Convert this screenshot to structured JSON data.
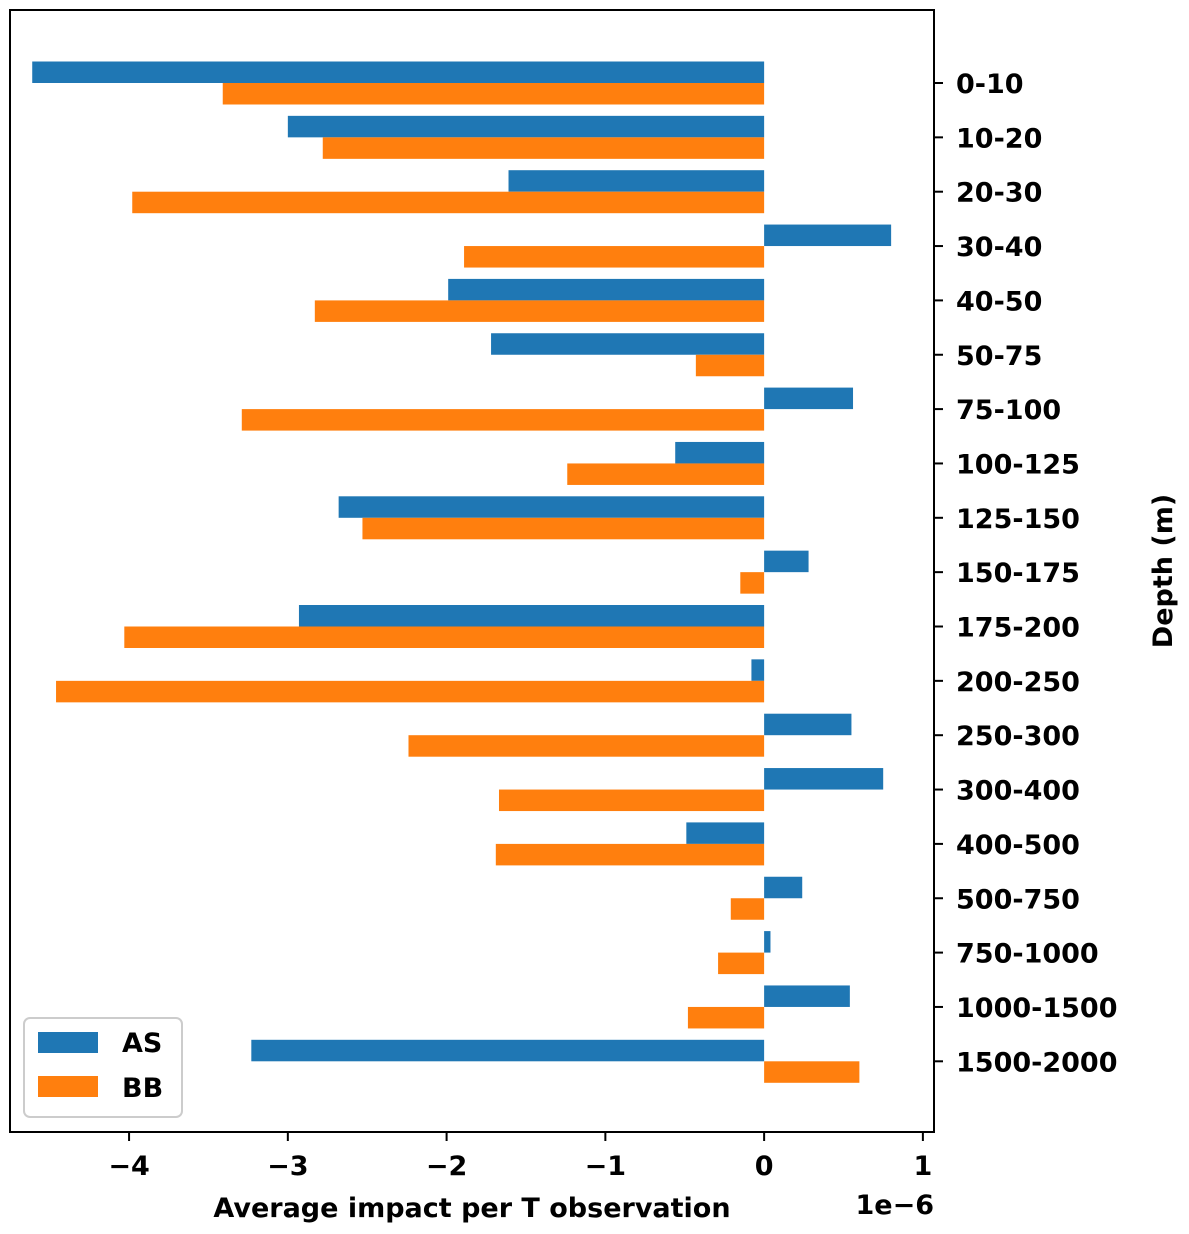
{
  "chart_data": {
    "type": "bar",
    "orientation": "horizontal",
    "title": "",
    "xlabel": "Average impact per T observation",
    "ylabel": "Depth (m)",
    "ylabel_position": "right",
    "x_scale_label": "1e−6",
    "xlim": [
      -4.75,
      1.07
    ],
    "xticks": [
      -4,
      -3,
      -2,
      -1,
      0,
      1
    ],
    "xtick_labels": [
      "−4",
      "−3",
      "−2",
      "−1",
      "0",
      "1"
    ],
    "categories": [
      "0-10",
      "10-20",
      "20-30",
      "30-40",
      "40-50",
      "50-75",
      "75-100",
      "100-125",
      "125-150",
      "150-175",
      "175-200",
      "200-250",
      "250-300",
      "300-400",
      "400-500",
      "500-750",
      "750-1000",
      "1000-1500",
      "1500-2000"
    ],
    "series": [
      {
        "name": "AS",
        "color": "#1f77b4",
        "values": [
          -4.61,
          -3.0,
          -1.61,
          0.8,
          -1.99,
          -1.72,
          0.56,
          -0.56,
          -2.68,
          0.28,
          -2.93,
          -0.08,
          0.55,
          0.75,
          -0.49,
          0.24,
          0.04,
          0.54,
          -3.23
        ]
      },
      {
        "name": "BB",
        "color": "#ff7f0e",
        "values": [
          -3.41,
          -2.78,
          -3.98,
          -1.89,
          -2.83,
          -0.43,
          -3.29,
          -1.24,
          -2.53,
          -0.15,
          -4.03,
          -4.46,
          -2.24,
          -1.67,
          -1.69,
          -0.21,
          -0.29,
          -0.48,
          0.6
        ]
      }
    ],
    "legend": {
      "position": "lower-left",
      "entries": [
        "AS",
        "BB"
      ]
    },
    "grid": false
  }
}
